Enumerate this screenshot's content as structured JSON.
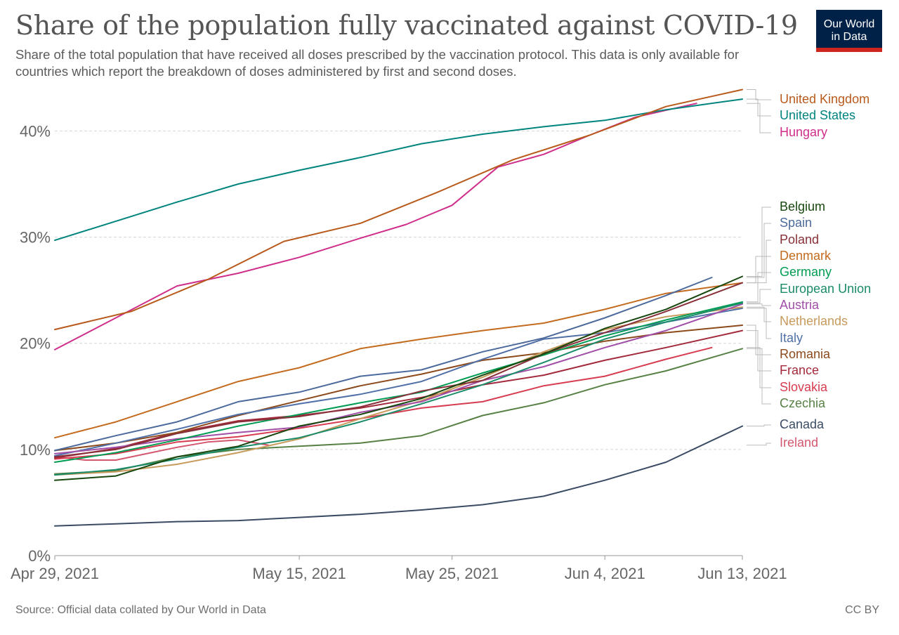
{
  "title": "Share of the population fully vaccinated against COVID-19",
  "subtitle": "Share of the total population that have received all doses prescribed by the vaccination protocol. This data is only available for countries which report the breakdown of doses administered by first and second doses.",
  "logo": {
    "line1": "Our World",
    "line2": "in Data"
  },
  "source": "Source: Official data collated by Our World in Data",
  "license": "CC BY",
  "chart_data": {
    "type": "line",
    "title": "Share of the population fully vaccinated against COVID-19",
    "xlabel": "",
    "ylabel": "",
    "x_start": "2021-04-29",
    "x_end": "2021-06-13",
    "x_ticks": [
      {
        "date": "2021-04-29",
        "label": "Apr 29, 2021"
      },
      {
        "date": "2021-05-15",
        "label": "May 15, 2021"
      },
      {
        "date": "2021-05-25",
        "label": "May 25, 2021"
      },
      {
        "date": "2021-06-04",
        "label": "Jun 4, 2021"
      },
      {
        "date": "2021-06-13",
        "label": "Jun 13, 2021"
      }
    ],
    "y_ticks": [
      {
        "value": 0,
        "label": "0%"
      },
      {
        "value": 10,
        "label": "10%"
      },
      {
        "value": 20,
        "label": "20%"
      },
      {
        "value": 30,
        "label": "30%"
      },
      {
        "value": 40,
        "label": "40%"
      }
    ],
    "ylim": [
      0,
      44
    ],
    "grid": "horizontal-dashed",
    "legend": "right",
    "series": [
      {
        "name": "United Kingdom",
        "color": "#b85a1c",
        "points": [
          [
            "2021-04-29",
            21.3
          ],
          [
            "2021-05-04",
            23.0
          ],
          [
            "2021-05-09",
            26.0
          ],
          [
            "2021-05-14",
            29.6
          ],
          [
            "2021-05-19",
            31.3
          ],
          [
            "2021-05-24",
            34.2
          ],
          [
            "2021-05-29",
            37.3
          ],
          [
            "2021-06-03",
            39.6
          ],
          [
            "2021-06-08",
            42.3
          ],
          [
            "2021-06-13",
            43.9
          ]
        ]
      },
      {
        "name": "United States",
        "color": "#00847e",
        "points": [
          [
            "2021-04-29",
            29.7
          ],
          [
            "2021-05-03",
            31.5
          ],
          [
            "2021-05-07",
            33.3
          ],
          [
            "2021-05-11",
            35.0
          ],
          [
            "2021-05-15",
            36.3
          ],
          [
            "2021-05-19",
            37.5
          ],
          [
            "2021-05-23",
            38.8
          ],
          [
            "2021-05-27",
            39.7
          ],
          [
            "2021-05-31",
            40.4
          ],
          [
            "2021-06-04",
            41.0
          ],
          [
            "2021-06-08",
            42.0
          ],
          [
            "2021-06-13",
            43.0
          ]
        ]
      },
      {
        "name": "Hungary",
        "color": "#cf2e8a",
        "points": [
          [
            "2021-04-29",
            19.4
          ],
          [
            "2021-05-03",
            22.4
          ],
          [
            "2021-05-07",
            25.4
          ],
          [
            "2021-05-11",
            26.6
          ],
          [
            "2021-05-15",
            28.1
          ],
          [
            "2021-05-19",
            29.9
          ],
          [
            "2021-05-22",
            31.2
          ],
          [
            "2021-05-25",
            33.0
          ],
          [
            "2021-05-28",
            36.6
          ],
          [
            "2021-05-31",
            37.8
          ],
          [
            "2021-06-03",
            39.6
          ],
          [
            "2021-06-06",
            41.3
          ],
          [
            "2021-06-10",
            42.6
          ]
        ]
      },
      {
        "name": "Belgium",
        "color": "#18470f",
        "points": [
          [
            "2021-04-29",
            7.1
          ],
          [
            "2021-05-03",
            7.5
          ],
          [
            "2021-05-07",
            9.3
          ],
          [
            "2021-05-11",
            10.3
          ],
          [
            "2021-05-15",
            12.2
          ],
          [
            "2021-05-19",
            13.3
          ],
          [
            "2021-05-23",
            14.8
          ],
          [
            "2021-05-27",
            17.0
          ],
          [
            "2021-05-31",
            19.0
          ],
          [
            "2021-06-04",
            21.4
          ],
          [
            "2021-06-08",
            23.2
          ],
          [
            "2021-06-13",
            26.3
          ]
        ]
      },
      {
        "name": "Spain",
        "color": "#4c6a9c",
        "points": [
          [
            "2021-04-29",
            9.9
          ],
          [
            "2021-05-03",
            11.3
          ],
          [
            "2021-05-07",
            12.6
          ],
          [
            "2021-05-11",
            14.5
          ],
          [
            "2021-05-15",
            15.4
          ],
          [
            "2021-05-19",
            16.9
          ],
          [
            "2021-05-23",
            17.5
          ],
          [
            "2021-05-27",
            19.2
          ],
          [
            "2021-05-31",
            20.5
          ],
          [
            "2021-06-04",
            22.4
          ],
          [
            "2021-06-08",
            24.5
          ],
          [
            "2021-06-11",
            26.2
          ]
        ]
      },
      {
        "name": "Poland",
        "color": "#883039",
        "points": [
          [
            "2021-04-29",
            9.3
          ],
          [
            "2021-05-03",
            10.0
          ],
          [
            "2021-05-07",
            11.5
          ],
          [
            "2021-05-11",
            12.6
          ],
          [
            "2021-05-15",
            13.1
          ],
          [
            "2021-05-19",
            14.0
          ],
          [
            "2021-05-23",
            15.5
          ],
          [
            "2021-05-27",
            16.5
          ],
          [
            "2021-05-31",
            19.0
          ],
          [
            "2021-06-04",
            21.0
          ],
          [
            "2021-06-08",
            23.0
          ],
          [
            "2021-06-13",
            25.7
          ]
        ]
      },
      {
        "name": "Denmark",
        "color": "#c36b1e",
        "points": [
          [
            "2021-04-29",
            11.1
          ],
          [
            "2021-05-03",
            12.6
          ],
          [
            "2021-05-07",
            14.5
          ],
          [
            "2021-05-11",
            16.4
          ],
          [
            "2021-05-15",
            17.7
          ],
          [
            "2021-05-19",
            19.5
          ],
          [
            "2021-05-23",
            20.4
          ],
          [
            "2021-05-27",
            21.2
          ],
          [
            "2021-05-31",
            21.9
          ],
          [
            "2021-06-04",
            23.2
          ],
          [
            "2021-06-08",
            24.7
          ],
          [
            "2021-06-13",
            25.7
          ]
        ]
      },
      {
        "name": "Germany",
        "color": "#009c54",
        "points": [
          [
            "2021-04-29",
            8.8
          ],
          [
            "2021-05-03",
            9.7
          ],
          [
            "2021-05-07",
            10.9
          ],
          [
            "2021-05-11",
            12.2
          ],
          [
            "2021-05-15",
            13.3
          ],
          [
            "2021-05-19",
            14.4
          ],
          [
            "2021-05-23",
            15.4
          ],
          [
            "2021-05-27",
            17.2
          ],
          [
            "2021-05-31",
            18.9
          ],
          [
            "2021-06-04",
            20.7
          ],
          [
            "2021-06-08",
            22.2
          ],
          [
            "2021-06-13",
            23.9
          ]
        ]
      },
      {
        "name": "European Union",
        "color": "#1a8c6a",
        "points": [
          [
            "2021-04-29",
            7.6
          ],
          [
            "2021-05-03",
            8.1
          ],
          [
            "2021-05-07",
            9.1
          ],
          [
            "2021-05-11",
            10.2
          ],
          [
            "2021-05-15",
            11.1
          ],
          [
            "2021-05-19",
            12.6
          ],
          [
            "2021-05-23",
            14.3
          ],
          [
            "2021-05-27",
            16.1
          ],
          [
            "2021-05-31",
            18.2
          ],
          [
            "2021-06-04",
            20.4
          ],
          [
            "2021-06-08",
            22.0
          ],
          [
            "2021-06-13",
            23.8
          ]
        ]
      },
      {
        "name": "Austria",
        "color": "#a14ea8",
        "points": [
          [
            "2021-04-29",
            9.6
          ],
          [
            "2021-05-03",
            10.2
          ],
          [
            "2021-05-07",
            11.0
          ],
          [
            "2021-05-11",
            11.6
          ],
          [
            "2021-05-15",
            12.1
          ],
          [
            "2021-05-19",
            13.5
          ],
          [
            "2021-05-23",
            14.5
          ],
          [
            "2021-05-27",
            16.5
          ],
          [
            "2021-05-31",
            17.8
          ],
          [
            "2021-06-04",
            19.6
          ],
          [
            "2021-06-08",
            21.2
          ],
          [
            "2021-06-13",
            23.7
          ]
        ]
      },
      {
        "name": "Netherlands",
        "color": "#c89a5c",
        "points": [
          [
            "2021-04-29",
            7.6
          ],
          [
            "2021-05-03",
            7.9
          ],
          [
            "2021-05-07",
            8.6
          ],
          [
            "2021-05-11",
            9.7
          ],
          [
            "2021-05-15",
            11.0
          ],
          [
            "2021-05-19",
            12.9
          ],
          [
            "2021-05-23",
            14.6
          ],
          [
            "2021-05-27",
            16.8
          ],
          [
            "2021-05-31",
            19.2
          ],
          [
            "2021-06-04",
            21.3
          ],
          [
            "2021-06-08",
            22.5
          ],
          [
            "2021-06-13",
            23.4
          ]
        ]
      },
      {
        "name": "Italy",
        "color": "#5070a8",
        "points": [
          [
            "2021-04-29",
            9.4
          ],
          [
            "2021-05-03",
            10.6
          ],
          [
            "2021-05-07",
            11.9
          ],
          [
            "2021-05-11",
            13.3
          ],
          [
            "2021-05-15",
            14.3
          ],
          [
            "2021-05-19",
            15.2
          ],
          [
            "2021-05-23",
            16.4
          ],
          [
            "2021-05-27",
            18.5
          ],
          [
            "2021-05-31",
            20.4
          ],
          [
            "2021-06-04",
            21.0
          ],
          [
            "2021-06-08",
            22.0
          ],
          [
            "2021-06-13",
            23.3
          ]
        ]
      },
      {
        "name": "Romania",
        "color": "#8c4a1c",
        "points": [
          [
            "2021-04-29",
            9.9
          ],
          [
            "2021-05-03",
            10.6
          ],
          [
            "2021-05-07",
            11.6
          ],
          [
            "2021-05-11",
            13.2
          ],
          [
            "2021-05-15",
            14.6
          ],
          [
            "2021-05-19",
            16.0
          ],
          [
            "2021-05-23",
            17.1
          ],
          [
            "2021-05-27",
            18.4
          ],
          [
            "2021-05-31",
            19.1
          ],
          [
            "2021-06-04",
            20.2
          ],
          [
            "2021-06-08",
            21.0
          ],
          [
            "2021-06-13",
            21.7
          ]
        ]
      },
      {
        "name": "France",
        "color": "#a32a3c",
        "points": [
          [
            "2021-04-29",
            9.2
          ],
          [
            "2021-05-03",
            10.1
          ],
          [
            "2021-05-07",
            11.6
          ],
          [
            "2021-05-11",
            12.7
          ],
          [
            "2021-05-15",
            13.2
          ],
          [
            "2021-05-19",
            13.9
          ],
          [
            "2021-05-23",
            14.9
          ],
          [
            "2021-05-27",
            16.1
          ],
          [
            "2021-05-31",
            17.0
          ],
          [
            "2021-06-04",
            18.4
          ],
          [
            "2021-06-08",
            19.6
          ],
          [
            "2021-06-13",
            21.2
          ]
        ]
      },
      {
        "name": "Slovakia",
        "color": "#d73c50",
        "points": [
          [
            "2021-04-29",
            9.1
          ],
          [
            "2021-05-03",
            9.6
          ],
          [
            "2021-05-07",
            10.7
          ],
          [
            "2021-05-11",
            11.2
          ],
          [
            "2021-05-15",
            12.0
          ],
          [
            "2021-05-19",
            12.9
          ],
          [
            "2021-05-23",
            13.9
          ],
          [
            "2021-05-27",
            14.5
          ],
          [
            "2021-05-31",
            16.0
          ],
          [
            "2021-06-04",
            16.9
          ],
          [
            "2021-06-08",
            18.5
          ],
          [
            "2021-06-11",
            19.6
          ]
        ]
      },
      {
        "name": "Czechia",
        "color": "#578145",
        "points": [
          [
            "2021-04-29",
            7.7
          ],
          [
            "2021-05-03",
            8.0
          ],
          [
            "2021-05-07",
            9.3
          ],
          [
            "2021-05-11",
            10.0
          ],
          [
            "2021-05-15",
            10.3
          ],
          [
            "2021-05-19",
            10.6
          ],
          [
            "2021-05-23",
            11.3
          ],
          [
            "2021-05-27",
            13.2
          ],
          [
            "2021-05-31",
            14.4
          ],
          [
            "2021-06-04",
            16.1
          ],
          [
            "2021-06-08",
            17.4
          ],
          [
            "2021-06-13",
            19.5
          ]
        ]
      },
      {
        "name": "Canada",
        "color": "#3b4b63",
        "points": [
          [
            "2021-04-29",
            2.8
          ],
          [
            "2021-05-03",
            3.0
          ],
          [
            "2021-05-07",
            3.2
          ],
          [
            "2021-05-11",
            3.3
          ],
          [
            "2021-05-15",
            3.6
          ],
          [
            "2021-05-19",
            3.9
          ],
          [
            "2021-05-23",
            4.3
          ],
          [
            "2021-05-27",
            4.8
          ],
          [
            "2021-05-31",
            5.6
          ],
          [
            "2021-06-04",
            7.1
          ],
          [
            "2021-06-08",
            8.8
          ],
          [
            "2021-06-13",
            12.2
          ]
        ]
      },
      {
        "name": "Ireland",
        "color": "#d3576e",
        "points": [
          [
            "2021-04-29",
            9.3
          ],
          [
            "2021-05-01",
            9.0
          ],
          [
            "2021-05-03",
            9.0
          ],
          [
            "2021-05-05",
            9.6
          ],
          [
            "2021-05-07",
            10.2
          ],
          [
            "2021-05-09",
            10.7
          ],
          [
            "2021-05-11",
            10.9
          ],
          [
            "2021-05-13",
            10.4
          ]
        ]
      }
    ]
  }
}
